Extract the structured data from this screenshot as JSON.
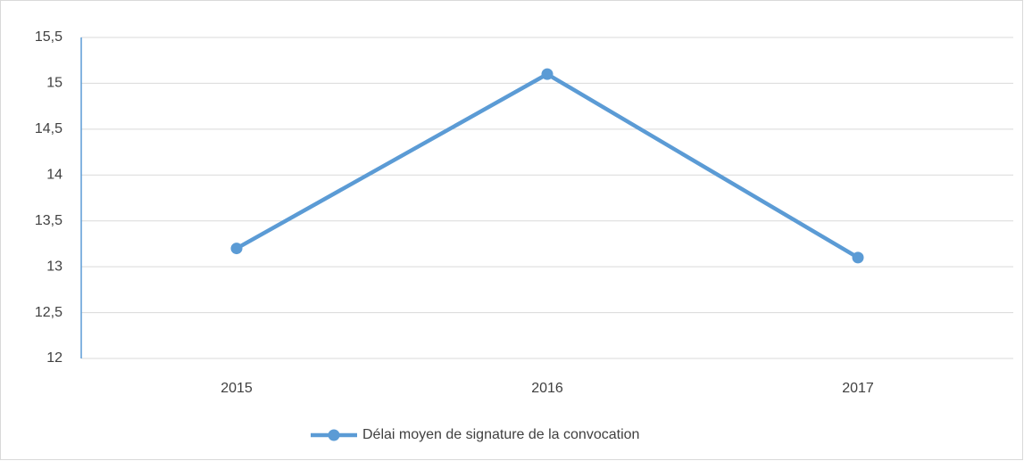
{
  "chart_data": {
    "type": "line",
    "categories": [
      "2015",
      "2016",
      "2017"
    ],
    "series": [
      {
        "name": "Délai moyen de signature de la convocation",
        "color": "#5b9bd5",
        "values": [
          13.2,
          15.1,
          13.1
        ]
      }
    ],
    "ylim": [
      12,
      15.5
    ],
    "yticks": [
      12,
      {
        "value": 12.5,
        "label": "12,5"
      },
      13,
      {
        "value": 13.5,
        "label": "13,5"
      },
      14,
      {
        "value": 14.5,
        "label": "14,5"
      },
      15,
      {
        "value": 15.5,
        "label": "15,5"
      }
    ],
    "grid": true,
    "legend": "bottom"
  }
}
